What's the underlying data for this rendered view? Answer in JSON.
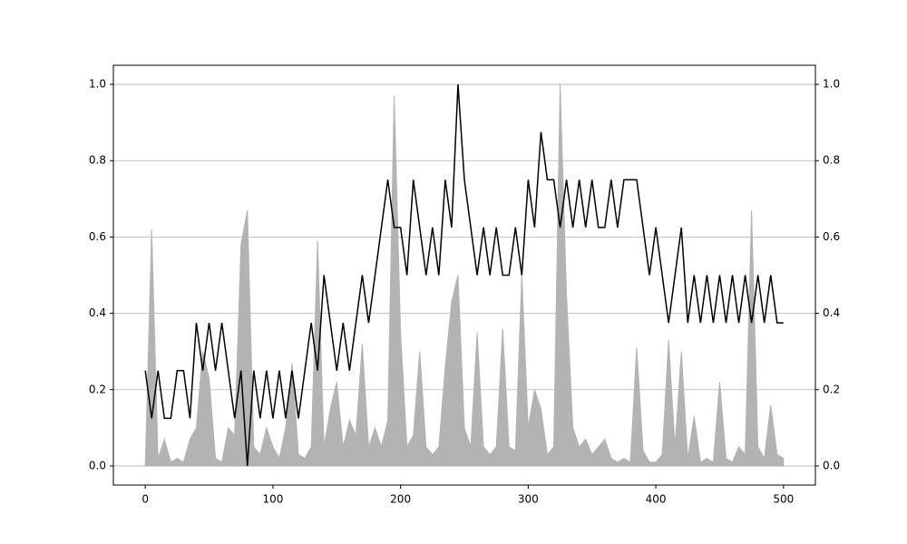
{
  "chart_data": {
    "type": "line",
    "x": [
      0,
      5,
      10,
      15,
      20,
      25,
      30,
      35,
      40,
      45,
      50,
      55,
      60,
      65,
      70,
      75,
      80,
      85,
      90,
      95,
      100,
      105,
      110,
      115,
      120,
      125,
      130,
      135,
      140,
      145,
      150,
      155,
      160,
      165,
      170,
      175,
      180,
      185,
      190,
      195,
      200,
      205,
      210,
      215,
      220,
      225,
      230,
      235,
      240,
      245,
      250,
      255,
      260,
      265,
      270,
      275,
      280,
      285,
      290,
      295,
      300,
      305,
      310,
      315,
      320,
      325,
      330,
      335,
      340,
      345,
      350,
      355,
      360,
      365,
      370,
      375,
      380,
      385,
      390,
      395,
      400,
      405,
      410,
      415,
      420,
      425,
      430,
      435,
      440,
      445,
      450,
      455,
      460,
      465,
      470,
      475,
      480,
      485,
      490,
      495,
      500
    ],
    "series": [
      {
        "color": "#b3b3b3",
        "fill": true,
        "axis": "y2",
        "values": [
          0,
          0.62,
          0.02,
          0.07,
          0.01,
          0.02,
          0.01,
          0.07,
          0.1,
          0.3,
          0.23,
          0.02,
          0.01,
          0.1,
          0.08,
          0.58,
          0.67,
          0.05,
          0.03,
          0.1,
          0.05,
          0.02,
          0.1,
          0.27,
          0.03,
          0.02,
          0.05,
          0.59,
          0.05,
          0.15,
          0.22,
          0.05,
          0.12,
          0.08,
          0.32,
          0.05,
          0.1,
          0.05,
          0.12,
          0.97,
          0.35,
          0.05,
          0.08,
          0.3,
          0.05,
          0.03,
          0.05,
          0.26,
          0.43,
          0.5,
          0.1,
          0.05,
          0.35,
          0.05,
          0.03,
          0.05,
          0.36,
          0.05,
          0.04,
          0.5,
          0.1,
          0.2,
          0.15,
          0.03,
          0.05,
          1.0,
          0.45,
          0.1,
          0.05,
          0.07,
          0.03,
          0.05,
          0.07,
          0.02,
          0.01,
          0.02,
          0.01,
          0.31,
          0.04,
          0.01,
          0.01,
          0.03,
          0.33,
          0.05,
          0.3,
          0.02,
          0.13,
          0.01,
          0.02,
          0.01,
          0.22,
          0.02,
          0.01,
          0.05,
          0.03,
          0.67,
          0.05,
          0.02,
          0.16,
          0.03,
          0.02
        ]
      },
      {
        "color": "#000000",
        "fill": false,
        "values": [
          0.25,
          0.125,
          0.25,
          0.125,
          0.125,
          0.25,
          0.25,
          0.125,
          0.375,
          0.25,
          0.375,
          0.25,
          0.375,
          0.25,
          0.125,
          0.25,
          0.0,
          0.25,
          0.125,
          0.25,
          0.125,
          0.25,
          0.125,
          0.25,
          0.125,
          0.25,
          0.375,
          0.25,
          0.5,
          0.375,
          0.25,
          0.375,
          0.25,
          0.375,
          0.5,
          0.375,
          0.5,
          0.625,
          0.75,
          0.625,
          0.625,
          0.5,
          0.75,
          0.625,
          0.5,
          0.625,
          0.5,
          0.75,
          0.625,
          1.0,
          0.75,
          0.625,
          0.5,
          0.625,
          0.5,
          0.625,
          0.5,
          0.5,
          0.625,
          0.5,
          0.75,
          0.625,
          0.875,
          0.75,
          0.75,
          0.625,
          0.75,
          0.625,
          0.75,
          0.625,
          0.75,
          0.625,
          0.625,
          0.75,
          0.625,
          0.75,
          0.75,
          0.75,
          0.625,
          0.5,
          0.625,
          0.5,
          0.375,
          0.5,
          0.625,
          0.375,
          0.5,
          0.375,
          0.5,
          0.375,
          0.5,
          0.375,
          0.5,
          0.375,
          0.5,
          0.375,
          0.5,
          0.375,
          0.5,
          0.375,
          0.375
        ]
      }
    ],
    "xlim": [
      -25,
      525
    ],
    "xticks": [
      0,
      100,
      200,
      300,
      400,
      500
    ],
    "ylim": [
      -0.05,
      1.05
    ],
    "yticks": [
      {
        "value": 0,
        "label": "0.0"
      },
      0.2,
      0.4,
      0.6,
      0.8,
      {
        "value": 1,
        "label": "1.0"
      }
    ],
    "y2lim": [
      -0.05,
      1.05
    ],
    "y2ticks": [
      {
        "value": 0,
        "label": "0.0"
      },
      0.2,
      0.4,
      0.6,
      0.8,
      {
        "value": 1,
        "label": "1.0"
      }
    ],
    "grid": true
  }
}
